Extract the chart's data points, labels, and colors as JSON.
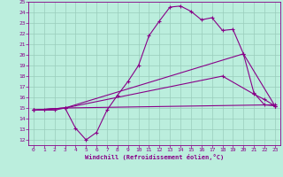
{
  "xlabel": "Windchill (Refroidissement éolien,°C)",
  "bg_color": "#bbeedd",
  "line_color": "#880088",
  "grid_color": "#99ccbb",
  "xlim": [
    -0.5,
    23.5
  ],
  "ylim": [
    11.5,
    25.0
  ],
  "xticks": [
    0,
    1,
    2,
    3,
    4,
    5,
    6,
    7,
    8,
    9,
    10,
    11,
    12,
    13,
    14,
    15,
    16,
    17,
    18,
    19,
    20,
    21,
    22,
    23
  ],
  "yticks": [
    12,
    13,
    14,
    15,
    16,
    17,
    18,
    19,
    20,
    21,
    22,
    23,
    24,
    25
  ],
  "line1_x": [
    0,
    1,
    2,
    3,
    4,
    5,
    6,
    7,
    8,
    9,
    10,
    11,
    12,
    13,
    14,
    15,
    16,
    17,
    18,
    19,
    20,
    21,
    22,
    23
  ],
  "line1_y": [
    14.8,
    14.8,
    14.8,
    15.0,
    13.1,
    12.0,
    12.7,
    14.8,
    16.2,
    17.5,
    19.0,
    21.8,
    23.2,
    24.5,
    24.6,
    24.1,
    23.3,
    23.5,
    22.3,
    22.4,
    20.1,
    16.4,
    15.3,
    15.2
  ],
  "line2_x": [
    0,
    3,
    20,
    23
  ],
  "line2_y": [
    14.8,
    15.0,
    20.1,
    15.2
  ],
  "line3_x": [
    0,
    3,
    18,
    21,
    22,
    23
  ],
  "line3_y": [
    14.8,
    15.0,
    18.0,
    16.3,
    15.8,
    15.2
  ],
  "line4_x": [
    0,
    3,
    23
  ],
  "line4_y": [
    14.8,
    15.0,
    15.3
  ]
}
